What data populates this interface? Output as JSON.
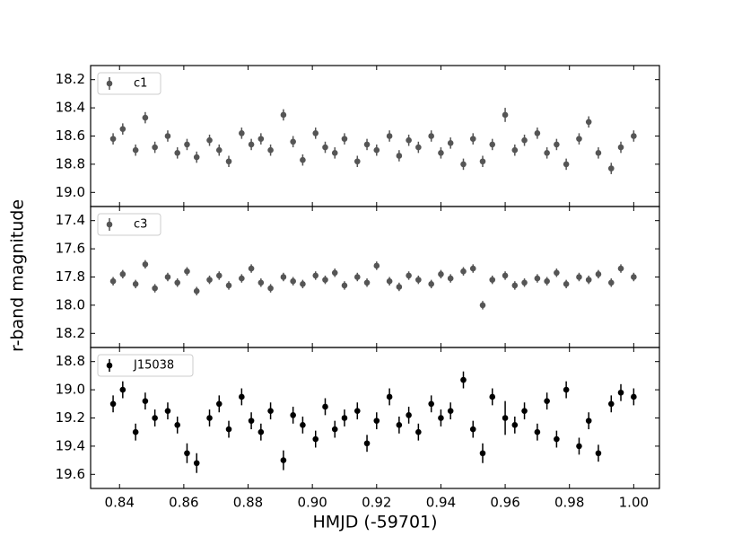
{
  "ylabel": "r-band magnitude",
  "xlabel": "HMJD (-59701)",
  "chart_data": [
    {
      "type": "errorbar",
      "name": "c1",
      "color": "#555555",
      "legend": "upper left",
      "invert_y": true,
      "xlim": [
        0.831,
        1.008
      ],
      "ylim": [
        18.1,
        19.1
      ],
      "yticks": [
        18.2,
        18.4,
        18.6,
        18.8,
        {
          "value": 19,
          "label": "19.0"
        }
      ],
      "x": [
        0.838,
        0.841,
        0.845,
        0.848,
        0.851,
        0.855,
        0.858,
        0.861,
        0.864,
        0.868,
        0.871,
        0.874,
        0.878,
        0.881,
        0.884,
        0.887,
        0.891,
        0.894,
        0.897,
        0.901,
        0.904,
        0.907,
        0.91,
        0.914,
        0.917,
        0.92,
        0.924,
        0.927,
        0.93,
        0.933,
        0.937,
        0.94,
        0.943,
        0.947,
        0.95,
        0.953,
        0.956,
        0.96,
        0.963,
        0.966,
        0.97,
        0.973,
        0.976,
        0.979,
        0.983,
        0.986,
        0.989,
        0.993,
        0.996,
        1.0
      ],
      "values": [
        18.62,
        18.55,
        18.7,
        18.47,
        18.68,
        18.6,
        18.72,
        18.66,
        18.75,
        18.63,
        18.7,
        18.78,
        18.58,
        18.66,
        18.62,
        18.7,
        18.45,
        18.64,
        18.77,
        18.58,
        18.68,
        18.72,
        18.62,
        18.78,
        18.66,
        18.7,
        18.6,
        18.74,
        18.63,
        18.68,
        18.6,
        18.72,
        18.65,
        18.8,
        18.62,
        18.78,
        18.66,
        18.45,
        18.7,
        18.63,
        18.58,
        18.72,
        18.66,
        18.8,
        18.62,
        18.5,
        18.72,
        18.83,
        18.68,
        18.6
      ],
      "errors": [
        0.04,
        0.04,
        0.04,
        0.04,
        0.04,
        0.04,
        0.04,
        0.04,
        0.04,
        0.04,
        0.04,
        0.04,
        0.04,
        0.04,
        0.04,
        0.04,
        0.04,
        0.04,
        0.04,
        0.04,
        0.04,
        0.04,
        0.04,
        0.04,
        0.04,
        0.04,
        0.04,
        0.04,
        0.04,
        0.04,
        0.04,
        0.04,
        0.04,
        0.04,
        0.04,
        0.04,
        0.04,
        0.05,
        0.04,
        0.04,
        0.04,
        0.04,
        0.04,
        0.04,
        0.04,
        0.04,
        0.04,
        0.04,
        0.04,
        0.04
      ]
    },
    {
      "type": "errorbar",
      "name": "c3",
      "color": "#555555",
      "legend": "upper left",
      "invert_y": true,
      "xlim": [
        0.831,
        1.008
      ],
      "ylim": [
        17.3,
        18.3
      ],
      "yticks": [
        17.4,
        17.6,
        17.8,
        {
          "value": 18,
          "label": "18.0"
        },
        18.2
      ],
      "x": [
        0.838,
        0.841,
        0.845,
        0.848,
        0.851,
        0.855,
        0.858,
        0.861,
        0.864,
        0.868,
        0.871,
        0.874,
        0.878,
        0.881,
        0.884,
        0.887,
        0.891,
        0.894,
        0.897,
        0.901,
        0.904,
        0.907,
        0.91,
        0.914,
        0.917,
        0.92,
        0.924,
        0.927,
        0.93,
        0.933,
        0.937,
        0.94,
        0.943,
        0.947,
        0.95,
        0.953,
        0.956,
        0.96,
        0.963,
        0.966,
        0.97,
        0.973,
        0.976,
        0.979,
        0.983,
        0.986,
        0.989,
        0.993,
        0.996,
        1.0
      ],
      "values": [
        17.83,
        17.78,
        17.85,
        17.71,
        17.88,
        17.8,
        17.84,
        17.76,
        17.9,
        17.82,
        17.79,
        17.86,
        17.81,
        17.74,
        17.84,
        17.88,
        17.8,
        17.83,
        17.85,
        17.79,
        17.82,
        17.77,
        17.86,
        17.8,
        17.84,
        17.72,
        17.83,
        17.87,
        17.79,
        17.82,
        17.85,
        17.78,
        17.81,
        17.76,
        17.74,
        18.0,
        17.82,
        17.79,
        17.86,
        17.84,
        17.81,
        17.83,
        17.77,
        17.85,
        17.8,
        17.82,
        17.78,
        17.84,
        17.74,
        17.8
      ],
      "errors": [
        0.03,
        0.03,
        0.03,
        0.03,
        0.03,
        0.03,
        0.03,
        0.03,
        0.03,
        0.03,
        0.03,
        0.03,
        0.03,
        0.03,
        0.03,
        0.03,
        0.03,
        0.03,
        0.03,
        0.03,
        0.03,
        0.03,
        0.03,
        0.03,
        0.03,
        0.03,
        0.03,
        0.03,
        0.03,
        0.03,
        0.03,
        0.03,
        0.03,
        0.03,
        0.03,
        0.03,
        0.03,
        0.03,
        0.03,
        0.03,
        0.03,
        0.03,
        0.03,
        0.03,
        0.03,
        0.03,
        0.03,
        0.03,
        0.03,
        0.03
      ]
    },
    {
      "type": "errorbar",
      "name": "J15038",
      "color": "#000000",
      "legend": "upper left",
      "invert_y": true,
      "xlim": [
        0.831,
        1.008
      ],
      "ylim": [
        18.7,
        19.7
      ],
      "yticks": [
        18.8,
        {
          "value": 19,
          "label": "19.0"
        },
        19.2,
        19.4,
        19.6
      ],
      "xticks": [
        0.84,
        0.86,
        0.88,
        {
          "value": 0.9,
          "label": "0.90"
        },
        0.92,
        0.94,
        0.96,
        0.98,
        {
          "value": 1,
          "label": "1.00"
        }
      ],
      "x": [
        0.838,
        0.841,
        0.845,
        0.848,
        0.851,
        0.855,
        0.858,
        0.861,
        0.864,
        0.868,
        0.871,
        0.874,
        0.878,
        0.881,
        0.884,
        0.887,
        0.891,
        0.894,
        0.897,
        0.901,
        0.904,
        0.907,
        0.91,
        0.914,
        0.917,
        0.92,
        0.924,
        0.927,
        0.93,
        0.933,
        0.937,
        0.94,
        0.943,
        0.947,
        0.95,
        0.953,
        0.956,
        0.96,
        0.963,
        0.966,
        0.97,
        0.973,
        0.976,
        0.979,
        0.983,
        0.986,
        0.989,
        0.993,
        0.996,
        1.0
      ],
      "values": [
        19.1,
        19.0,
        19.3,
        19.08,
        19.2,
        19.15,
        19.25,
        19.45,
        19.52,
        19.2,
        19.1,
        19.28,
        19.05,
        19.22,
        19.3,
        19.15,
        19.5,
        19.18,
        19.25,
        19.35,
        19.12,
        19.28,
        19.2,
        19.15,
        19.38,
        19.22,
        19.05,
        19.25,
        19.18,
        19.3,
        19.1,
        19.2,
        19.15,
        18.93,
        19.28,
        19.45,
        19.05,
        19.2,
        19.25,
        19.15,
        19.3,
        19.08,
        19.35,
        19.0,
        19.4,
        19.22,
        19.45,
        19.1,
        19.02,
        19.05
      ],
      "errors": [
        0.06,
        0.06,
        0.06,
        0.06,
        0.06,
        0.06,
        0.06,
        0.07,
        0.07,
        0.06,
        0.06,
        0.06,
        0.06,
        0.06,
        0.06,
        0.06,
        0.07,
        0.06,
        0.06,
        0.06,
        0.06,
        0.06,
        0.06,
        0.06,
        0.06,
        0.06,
        0.06,
        0.06,
        0.06,
        0.06,
        0.06,
        0.06,
        0.06,
        0.06,
        0.06,
        0.07,
        0.06,
        0.12,
        0.06,
        0.06,
        0.06,
        0.06,
        0.06,
        0.06,
        0.06,
        0.06,
        0.06,
        0.06,
        0.06,
        0.06
      ]
    }
  ]
}
